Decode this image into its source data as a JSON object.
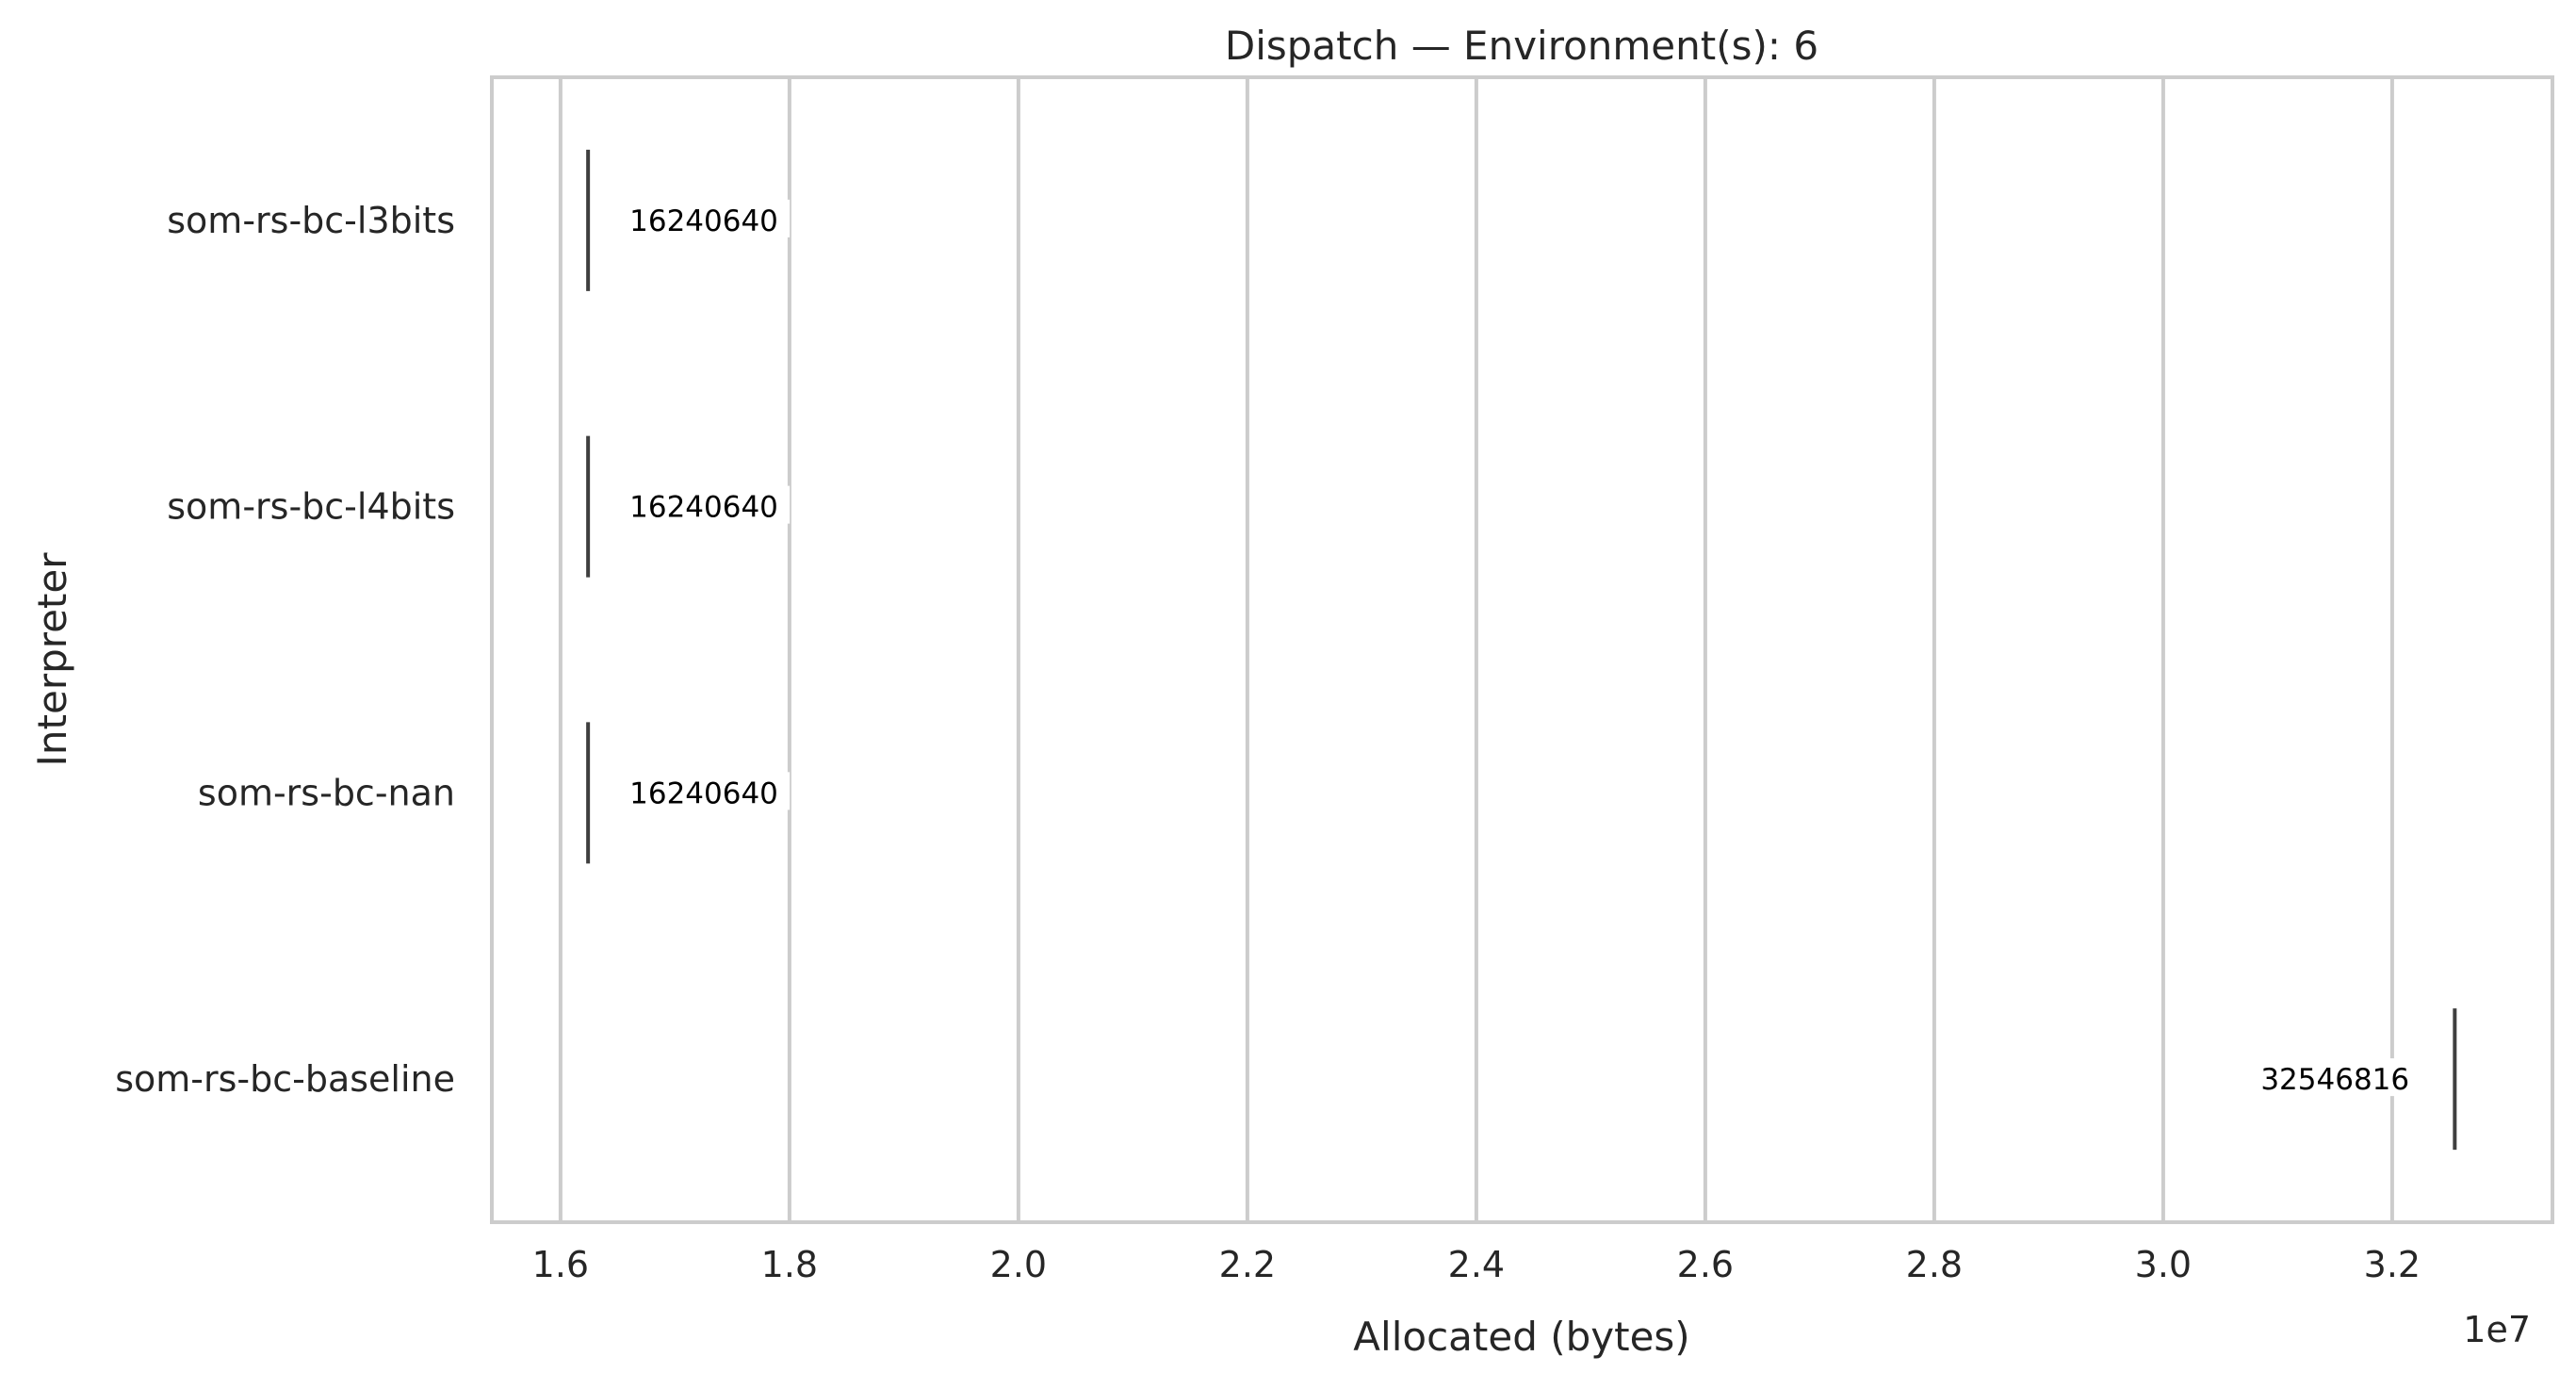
{
  "chart_data": {
    "type": "box",
    "title": "Dispatch — Environment(s): 6",
    "xlabel": "Allocated (bytes)",
    "ylabel": "Interpreter",
    "x_offset_label": "1e7",
    "xlim": [
      15400000,
      33400000
    ],
    "xticks": [
      16000000,
      18000000,
      20000000,
      22000000,
      24000000,
      26000000,
      28000000,
      30000000,
      32000000
    ],
    "xtick_labels": [
      "1.6",
      "1.8",
      "2.0",
      "2.2",
      "2.4",
      "2.6",
      "2.8",
      "3.0",
      "3.2"
    ],
    "grid": true,
    "categories": [
      "som-rs-bc-l3bits",
      "som-rs-bc-l4bits",
      "som-rs-bc-nan",
      "som-rs-bc-baseline"
    ],
    "values": [
      16240640,
      16240640,
      16240640,
      32546816
    ],
    "value_labels": [
      "16240640",
      "16240640",
      "16240640",
      "32546816"
    ],
    "colors": {
      "grid": "#cccccc",
      "frame": "#cccccc",
      "mark": "#3f3f3f",
      "label_box": "#ffffff"
    }
  }
}
